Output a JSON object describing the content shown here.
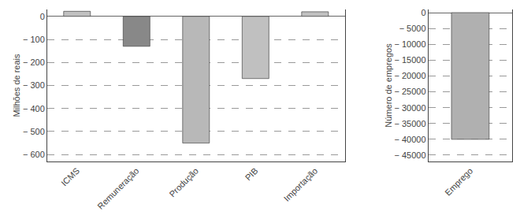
{
  "chart_data": [
    {
      "type": "bar",
      "categories": [
        "ICMS",
        "Remuneração",
        "Produção",
        "PIB",
        "Importação"
      ],
      "values": [
        22,
        -130,
        -550,
        -270,
        20
      ],
      "colors": [
        "#c0c0c0",
        "#888888",
        "#b8b8b8",
        "#c0c0c0",
        "#c0c0c0"
      ],
      "ylabel": "Milhões de reais",
      "ylim": [
        -630,
        30
      ],
      "yticks": [
        0,
        {
          "value": -100,
          "label": "− 100"
        },
        {
          "value": -200,
          "label": "− 200"
        },
        {
          "value": -300,
          "label": "− 300"
        },
        {
          "value": -400,
          "label": "− 400"
        },
        {
          "value": -500,
          "label": "− 500"
        },
        {
          "value": -600,
          "label": "− 600"
        }
      ],
      "grid": true
    },
    {
      "type": "bar",
      "categories": [
        "Emprego"
      ],
      "values": [
        -40000
      ],
      "colors": [
        "#b0b0b0"
      ],
      "ylabel": "Número de empregos",
      "ylim": [
        -47000,
        1000
      ],
      "yticks": [
        0,
        {
          "value": -5000,
          "label": "− 5000"
        },
        {
          "value": -10000,
          "label": "− 10000"
        },
        {
          "value": -15000,
          "label": "− 15000"
        },
        {
          "value": -20000,
          "label": "− 20000"
        },
        {
          "value": -25000,
          "label": "− 25000"
        },
        {
          "value": -30000,
          "label": "− 30000"
        },
        {
          "value": -35000,
          "label": "− 35000"
        },
        {
          "value": -40000,
          "label": "− 40000"
        },
        {
          "value": -45000,
          "label": "− 45000"
        }
      ],
      "grid": true
    }
  ]
}
